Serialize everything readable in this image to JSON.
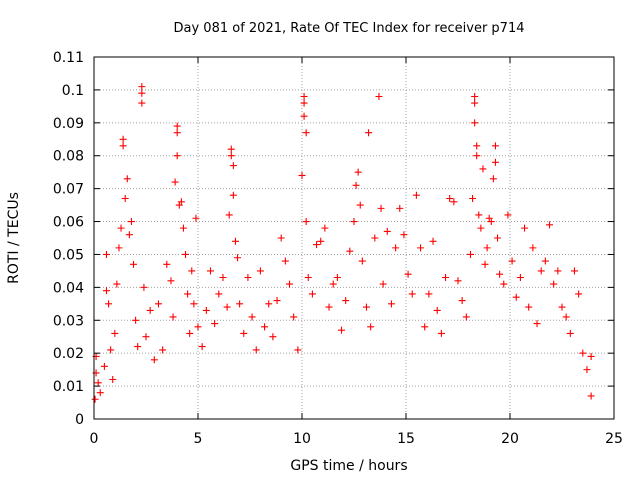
{
  "chart_data": {
    "type": "scatter",
    "title": "Day 081 of 2021, Rate Of TEC Index for receiver p714",
    "xlabel": "GPS time / hours",
    "ylabel": "ROTI / TECUs",
    "xlim": [
      0,
      25
    ],
    "ylim": [
      0,
      0.11
    ],
    "xticks": [
      "0",
      "5",
      "10",
      "15",
      "20",
      "25"
    ],
    "yticks": [
      "0",
      "0.01",
      "0.02",
      "0.03",
      "0.04",
      "0.05",
      "0.06",
      "0.07",
      "0.08",
      "0.09",
      "0.1",
      "0.11"
    ],
    "grid": true,
    "marker": "plus",
    "series": [
      {
        "color": "#ff0000",
        "points": [
          [
            0.05,
            0.006
          ],
          [
            0.1,
            0.014
          ],
          [
            0.1,
            0.019
          ],
          [
            0.2,
            0.011
          ],
          [
            0.3,
            0.008
          ],
          [
            0.5,
            0.016
          ],
          [
            0.6,
            0.05
          ],
          [
            0.6,
            0.039
          ],
          [
            0.7,
            0.035
          ],
          [
            0.8,
            0.021
          ],
          [
            0.9,
            0.012
          ],
          [
            1.0,
            0.026
          ],
          [
            1.1,
            0.041
          ],
          [
            1.2,
            0.052
          ],
          [
            1.3,
            0.058
          ],
          [
            1.4,
            0.083
          ],
          [
            1.4,
            0.085
          ],
          [
            1.5,
            0.067
          ],
          [
            1.6,
            0.073
          ],
          [
            1.7,
            0.056
          ],
          [
            1.8,
            0.06
          ],
          [
            1.9,
            0.047
          ],
          [
            2.0,
            0.03
          ],
          [
            2.1,
            0.022
          ],
          [
            2.3,
            0.101
          ],
          [
            2.3,
            0.099
          ],
          [
            2.3,
            0.096
          ],
          [
            2.4,
            0.04
          ],
          [
            2.5,
            0.025
          ],
          [
            2.7,
            0.033
          ],
          [
            2.9,
            0.018
          ],
          [
            3.1,
            0.035
          ],
          [
            3.3,
            0.021
          ],
          [
            3.5,
            0.047
          ],
          [
            3.7,
            0.042
          ],
          [
            3.8,
            0.031
          ],
          [
            3.9,
            0.072
          ],
          [
            4.0,
            0.089
          ],
          [
            4.0,
            0.087
          ],
          [
            4.0,
            0.08
          ],
          [
            4.1,
            0.065
          ],
          [
            4.2,
            0.066
          ],
          [
            4.3,
            0.058
          ],
          [
            4.4,
            0.05
          ],
          [
            4.5,
            0.038
          ],
          [
            4.6,
            0.026
          ],
          [
            4.7,
            0.045
          ],
          [
            4.8,
            0.035
          ],
          [
            4.9,
            0.061
          ],
          [
            5.0,
            0.028
          ],
          [
            5.2,
            0.022
          ],
          [
            5.4,
            0.033
          ],
          [
            5.6,
            0.045
          ],
          [
            5.8,
            0.029
          ],
          [
            6.0,
            0.038
          ],
          [
            6.2,
            0.043
          ],
          [
            6.4,
            0.034
          ],
          [
            6.5,
            0.062
          ],
          [
            6.6,
            0.082
          ],
          [
            6.6,
            0.08
          ],
          [
            6.7,
            0.077
          ],
          [
            6.7,
            0.068
          ],
          [
            6.8,
            0.054
          ],
          [
            6.9,
            0.049
          ],
          [
            7.0,
            0.035
          ],
          [
            7.2,
            0.026
          ],
          [
            7.4,
            0.043
          ],
          [
            7.6,
            0.031
          ],
          [
            7.8,
            0.021
          ],
          [
            8.0,
            0.045
          ],
          [
            8.2,
            0.028
          ],
          [
            8.4,
            0.035
          ],
          [
            8.6,
            0.025
          ],
          [
            8.8,
            0.036
          ],
          [
            9.0,
            0.055
          ],
          [
            9.2,
            0.048
          ],
          [
            9.4,
            0.041
          ],
          [
            9.6,
            0.031
          ],
          [
            9.8,
            0.021
          ],
          [
            10.0,
            0.074
          ],
          [
            10.1,
            0.098
          ],
          [
            10.1,
            0.096
          ],
          [
            10.1,
            0.092
          ],
          [
            10.2,
            0.087
          ],
          [
            10.2,
            0.06
          ],
          [
            10.3,
            0.043
          ],
          [
            10.5,
            0.038
          ],
          [
            10.7,
            0.053
          ],
          [
            10.9,
            0.054
          ],
          [
            11.1,
            0.058
          ],
          [
            11.3,
            0.034
          ],
          [
            11.5,
            0.041
          ],
          [
            11.7,
            0.043
          ],
          [
            11.9,
            0.027
          ],
          [
            12.1,
            0.036
          ],
          [
            12.3,
            0.051
          ],
          [
            12.5,
            0.06
          ],
          [
            12.6,
            0.071
          ],
          [
            12.7,
            0.075
          ],
          [
            12.8,
            0.065
          ],
          [
            12.9,
            0.048
          ],
          [
            13.1,
            0.034
          ],
          [
            13.2,
            0.087
          ],
          [
            13.3,
            0.028
          ],
          [
            13.5,
            0.055
          ],
          [
            13.7,
            0.098
          ],
          [
            13.8,
            0.064
          ],
          [
            13.9,
            0.041
          ],
          [
            14.1,
            0.057
          ],
          [
            14.3,
            0.035
          ],
          [
            14.5,
            0.052
          ],
          [
            14.7,
            0.064
          ],
          [
            14.9,
            0.056
          ],
          [
            15.1,
            0.044
          ],
          [
            15.3,
            0.038
          ],
          [
            15.5,
            0.068
          ],
          [
            15.7,
            0.052
          ],
          [
            15.9,
            0.028
          ],
          [
            16.1,
            0.038
          ],
          [
            16.3,
            0.054
          ],
          [
            16.5,
            0.033
          ],
          [
            16.7,
            0.026
          ],
          [
            16.9,
            0.043
          ],
          [
            17.1,
            0.067
          ],
          [
            17.3,
            0.066
          ],
          [
            17.5,
            0.042
          ],
          [
            17.7,
            0.036
          ],
          [
            17.9,
            0.031
          ],
          [
            18.1,
            0.05
          ],
          [
            18.2,
            0.067
          ],
          [
            18.3,
            0.098
          ],
          [
            18.3,
            0.096
          ],
          [
            18.3,
            0.09
          ],
          [
            18.4,
            0.083
          ],
          [
            18.4,
            0.08
          ],
          [
            18.5,
            0.062
          ],
          [
            18.6,
            0.058
          ],
          [
            18.7,
            0.076
          ],
          [
            18.8,
            0.047
          ],
          [
            18.9,
            0.052
          ],
          [
            19.0,
            0.061
          ],
          [
            19.1,
            0.06
          ],
          [
            19.2,
            0.073
          ],
          [
            19.3,
            0.083
          ],
          [
            19.3,
            0.078
          ],
          [
            19.4,
            0.055
          ],
          [
            19.5,
            0.044
          ],
          [
            19.7,
            0.041
          ],
          [
            19.9,
            0.062
          ],
          [
            20.1,
            0.048
          ],
          [
            20.3,
            0.037
          ],
          [
            20.5,
            0.043
          ],
          [
            20.7,
            0.058
          ],
          [
            20.9,
            0.034
          ],
          [
            21.1,
            0.052
          ],
          [
            21.3,
            0.029
          ],
          [
            21.5,
            0.045
          ],
          [
            21.7,
            0.048
          ],
          [
            21.9,
            0.059
          ],
          [
            22.1,
            0.041
          ],
          [
            22.3,
            0.045
          ],
          [
            22.5,
            0.034
          ],
          [
            22.7,
            0.031
          ],
          [
            22.9,
            0.026
          ],
          [
            23.1,
            0.045
          ],
          [
            23.3,
            0.038
          ],
          [
            23.5,
            0.02
          ],
          [
            23.7,
            0.015
          ],
          [
            23.9,
            0.019
          ],
          [
            23.9,
            0.007
          ]
        ]
      }
    ]
  }
}
